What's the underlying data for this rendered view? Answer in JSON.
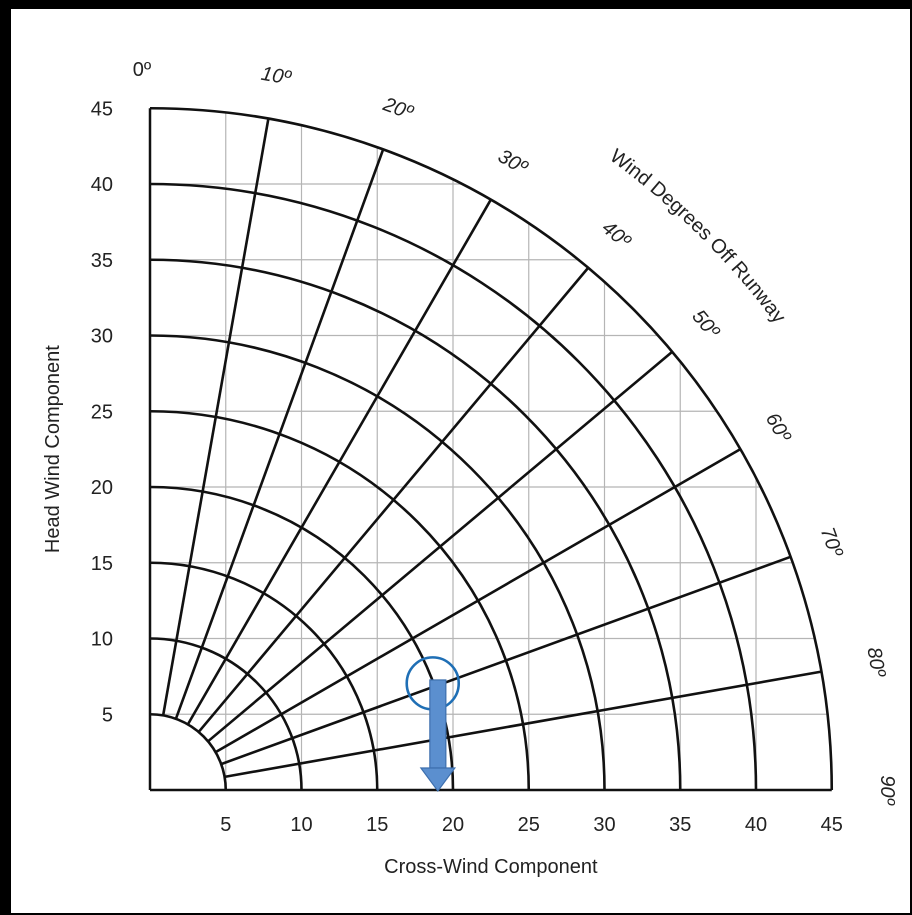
{
  "chart_data": {
    "type": "crosswind-component",
    "xlabel": "Cross-Wind Component",
    "ylabel": "Head Wind Component",
    "arc_title": "Wind Degrees Off Runway",
    "xlim": [
      0,
      45
    ],
    "ylim": [
      0,
      45
    ],
    "x_ticks": [
      "5",
      "10",
      "15",
      "20",
      "25",
      "30",
      "35",
      "40",
      "45"
    ],
    "y_ticks": [
      "5",
      "10",
      "15",
      "20",
      "25",
      "30",
      "35",
      "40",
      "45"
    ],
    "grid": true,
    "arc_speeds": [
      5,
      10,
      15,
      20,
      25,
      30,
      35,
      40,
      45
    ],
    "angle_lines": [
      10,
      20,
      30,
      40,
      50,
      60,
      70,
      80
    ],
    "angle_labels": [
      {
        "deg": 0,
        "label": "0º"
      },
      {
        "deg": 10,
        "label": "10º"
      },
      {
        "deg": 20,
        "label": "20º"
      },
      {
        "deg": 30,
        "label": "30º"
      },
      {
        "deg": 40,
        "label": "40º"
      },
      {
        "deg": 50,
        "label": "50º"
      },
      {
        "deg": 60,
        "label": "60º"
      },
      {
        "deg": 70,
        "label": "70º"
      },
      {
        "deg": 80,
        "label": "80º"
      },
      {
        "deg": 90,
        "label": "90º"
      }
    ],
    "highlight": {
      "wind_speed": 20,
      "wind_angle_deg": 70,
      "crosswind_read": 19,
      "headwind": 7,
      "marker_color": "#1f6fb5",
      "arrow_color": "#5b8fcf"
    }
  }
}
